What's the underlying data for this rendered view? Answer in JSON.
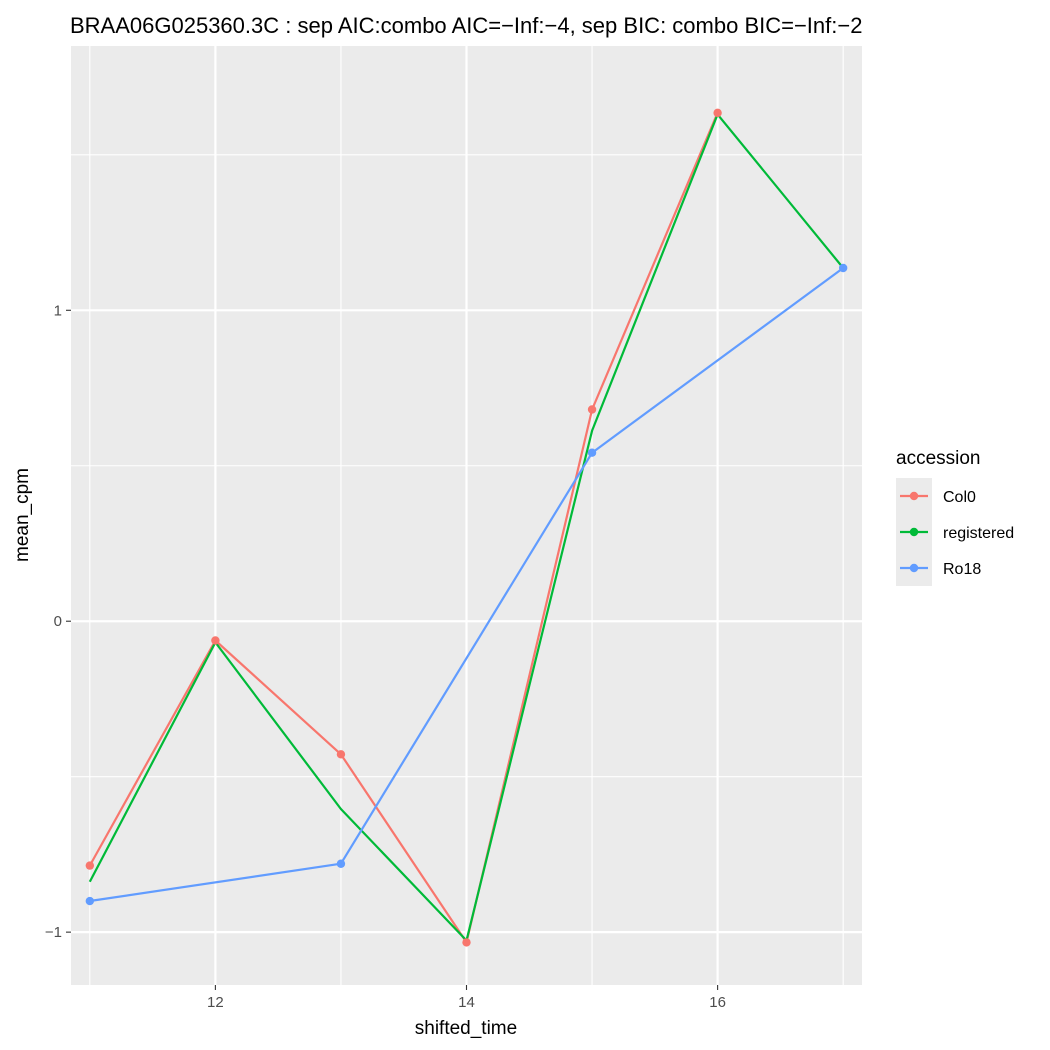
{
  "chart_data": {
    "type": "line",
    "title": "BRAA06G025360.3C : sep AIC:combo AIC=−Inf:−4, sep BIC: combo BIC=−Inf:−2",
    "xlabel": "shifted_time",
    "ylabel": "mean_cpm",
    "xlim": [
      10.85,
      17.15
    ],
    "ylim": [
      -1.17,
      1.85
    ],
    "x_ticks": [
      12,
      14,
      16
    ],
    "x_tick_labels": [
      "12",
      "14",
      "16"
    ],
    "y_ticks": [
      -1,
      0,
      1
    ],
    "y_tick_labels": [
      "−1",
      "0",
      "1"
    ],
    "grid": true,
    "panel_background": "#ebebeb",
    "legend": {
      "title": "accession",
      "position": "right"
    },
    "series": [
      {
        "name": "Col0",
        "color": "#f8766d",
        "points": true,
        "x": [
          11,
          12,
          13,
          14,
          15,
          16
        ],
        "values": [
          -0.786,
          -0.062,
          -0.428,
          -1.033,
          0.681,
          1.635
        ]
      },
      {
        "name": "registered",
        "color": "#00ba38",
        "points": false,
        "x": [
          11,
          12,
          13,
          14,
          15,
          16,
          17
        ],
        "values": [
          -0.838,
          -0.068,
          -0.604,
          -1.027,
          0.613,
          1.63,
          1.136
        ]
      },
      {
        "name": "Ro18",
        "color": "#619cff",
        "points": true,
        "x": [
          11,
          13,
          15,
          17
        ],
        "values": [
          -0.9,
          -0.78,
          0.542,
          1.136
        ]
      }
    ]
  }
}
